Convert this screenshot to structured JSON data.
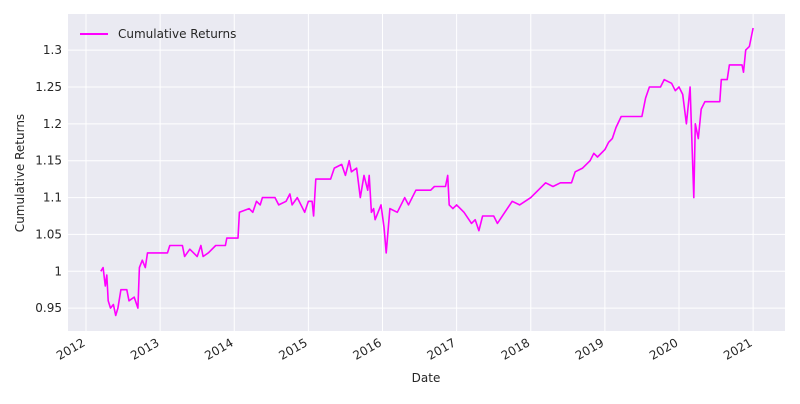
{
  "chart_data": {
    "type": "line",
    "xlabel": "Date",
    "ylabel": "Cumulative Returns",
    "x": [
      2012.2,
      2012.23,
      2012.26,
      2012.28,
      2012.3,
      2012.33,
      2012.37,
      2012.4,
      2012.43,
      2012.47,
      2012.55,
      2012.58,
      2012.65,
      2012.7,
      2012.72,
      2012.76,
      2012.8,
      2012.83,
      2013.1,
      2013.13,
      2013.3,
      2013.33,
      2013.4,
      2013.5,
      2013.55,
      2013.58,
      2013.65,
      2013.75,
      2013.88,
      2013.9,
      2014.05,
      2014.07,
      2014.2,
      2014.25,
      2014.3,
      2014.35,
      2014.38,
      2014.55,
      2014.6,
      2014.7,
      2014.75,
      2014.78,
      2014.85,
      2014.95,
      2015.0,
      2015.05,
      2015.07,
      2015.1,
      2015.3,
      2015.35,
      2015.45,
      2015.5,
      2015.55,
      2015.58,
      2015.65,
      2015.7,
      2015.75,
      2015.8,
      2015.82,
      2015.85,
      2015.88,
      2015.9,
      2015.98,
      2016.02,
      2016.05,
      2016.1,
      2016.2,
      2016.3,
      2016.35,
      2016.45,
      2016.65,
      2016.7,
      2016.85,
      2016.88,
      2016.9,
      2016.95,
      2017.0,
      2017.05,
      2017.1,
      2017.2,
      2017.25,
      2017.3,
      2017.35,
      2017.5,
      2017.55,
      2017.65,
      2017.75,
      2017.85,
      2018.0,
      2018.1,
      2018.2,
      2018.3,
      2018.4,
      2018.55,
      2018.6,
      2018.7,
      2018.8,
      2018.85,
      2018.9,
      2019.0,
      2019.05,
      2019.1,
      2019.15,
      2019.22,
      2019.5,
      2019.55,
      2019.6,
      2019.75,
      2019.8,
      2019.9,
      2019.95,
      2020.0,
      2020.05,
      2020.1,
      2020.15,
      2020.18,
      2020.2,
      2020.22,
      2020.26,
      2020.3,
      2020.35,
      2020.55,
      2020.57,
      2020.65,
      2020.68,
      2020.85,
      2020.87,
      2020.9,
      2020.95,
      2021.0
    ],
    "series": [
      {
        "name": "Cumulative Returns",
        "color": "#ff00ff",
        "values": [
          1.0,
          1.005,
          0.98,
          0.995,
          0.96,
          0.95,
          0.955,
          0.94,
          0.95,
          0.975,
          0.975,
          0.96,
          0.965,
          0.95,
          1.005,
          1.015,
          1.005,
          1.025,
          1.025,
          1.035,
          1.035,
          1.02,
          1.03,
          1.02,
          1.035,
          1.02,
          1.025,
          1.035,
          1.035,
          1.045,
          1.045,
          1.08,
          1.085,
          1.08,
          1.095,
          1.09,
          1.1,
          1.1,
          1.09,
          1.095,
          1.105,
          1.09,
          1.1,
          1.08,
          1.095,
          1.095,
          1.075,
          1.125,
          1.125,
          1.14,
          1.145,
          1.13,
          1.15,
          1.135,
          1.14,
          1.1,
          1.13,
          1.11,
          1.13,
          1.08,
          1.085,
          1.07,
          1.09,
          1.06,
          1.025,
          1.085,
          1.08,
          1.1,
          1.09,
          1.11,
          1.11,
          1.115,
          1.115,
          1.13,
          1.09,
          1.085,
          1.09,
          1.085,
          1.08,
          1.065,
          1.07,
          1.055,
          1.075,
          1.075,
          1.065,
          1.08,
          1.095,
          1.09,
          1.1,
          1.11,
          1.12,
          1.115,
          1.12,
          1.12,
          1.135,
          1.14,
          1.15,
          1.16,
          1.155,
          1.165,
          1.175,
          1.18,
          1.195,
          1.21,
          1.21,
          1.235,
          1.25,
          1.25,
          1.26,
          1.255,
          1.245,
          1.25,
          1.24,
          1.2,
          1.25,
          1.16,
          1.1,
          1.2,
          1.18,
          1.22,
          1.23,
          1.23,
          1.26,
          1.26,
          1.28,
          1.28,
          1.27,
          1.3,
          1.305,
          1.33
        ]
      }
    ],
    "xlim": [
      2011.757,
      2021.43
    ],
    "xticks": [
      2012,
      2013,
      2014,
      2015,
      2016,
      2017,
      2018,
      2019,
      2020,
      2021
    ],
    "ylim": [
      0.919,
      1.349
    ],
    "yticks": [
      0.95,
      1.0,
      1.05,
      1.1,
      1.15,
      1.2,
      1.25,
      1.3
    ],
    "grid": true,
    "legend": "upper left"
  }
}
